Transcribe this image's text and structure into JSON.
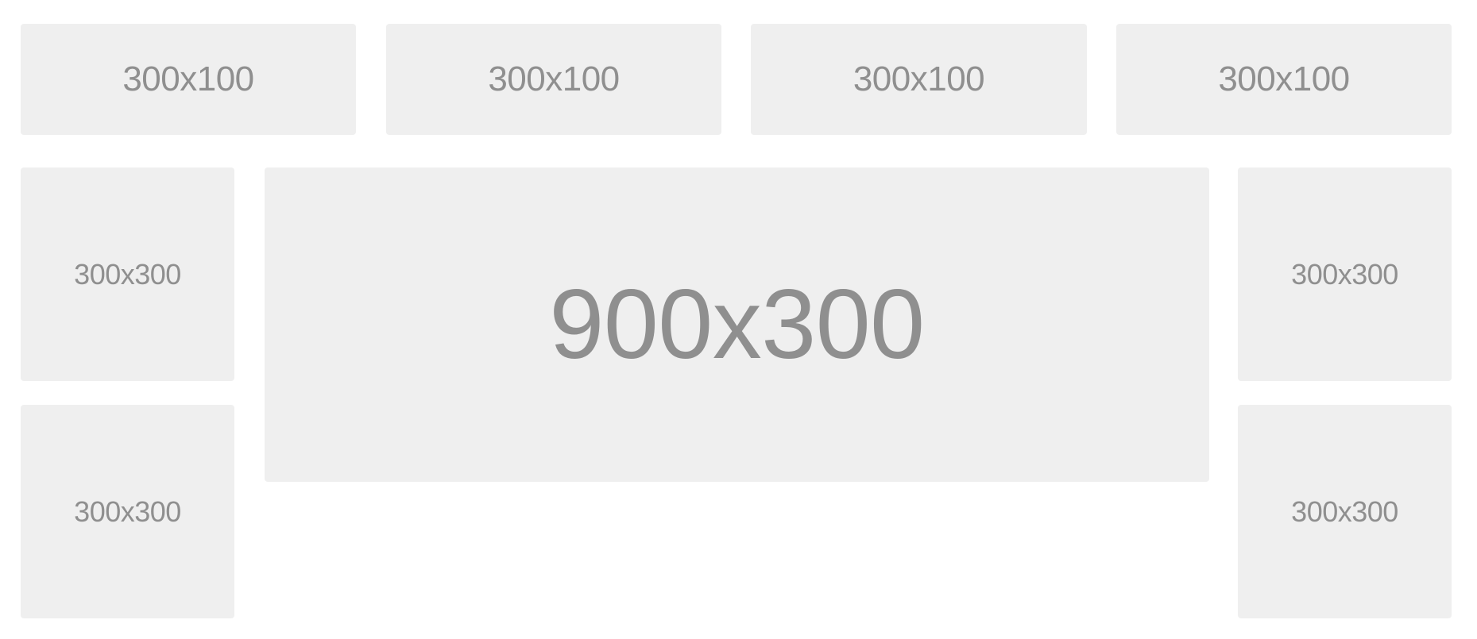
{
  "grid": {
    "top_row": [
      {
        "label": "300x100"
      },
      {
        "label": "300x100"
      },
      {
        "label": "300x100"
      },
      {
        "label": "300x100"
      }
    ],
    "left_column": [
      {
        "label": "300x300"
      },
      {
        "label": "300x300"
      }
    ],
    "center": {
      "label": "900x300"
    },
    "right_column": [
      {
        "label": "300x300"
      },
      {
        "label": "300x300"
      }
    ]
  },
  "colors": {
    "tile_background": "#efefef",
    "tile_text": "#8f8f8f",
    "page_background": "#ffffff"
  }
}
